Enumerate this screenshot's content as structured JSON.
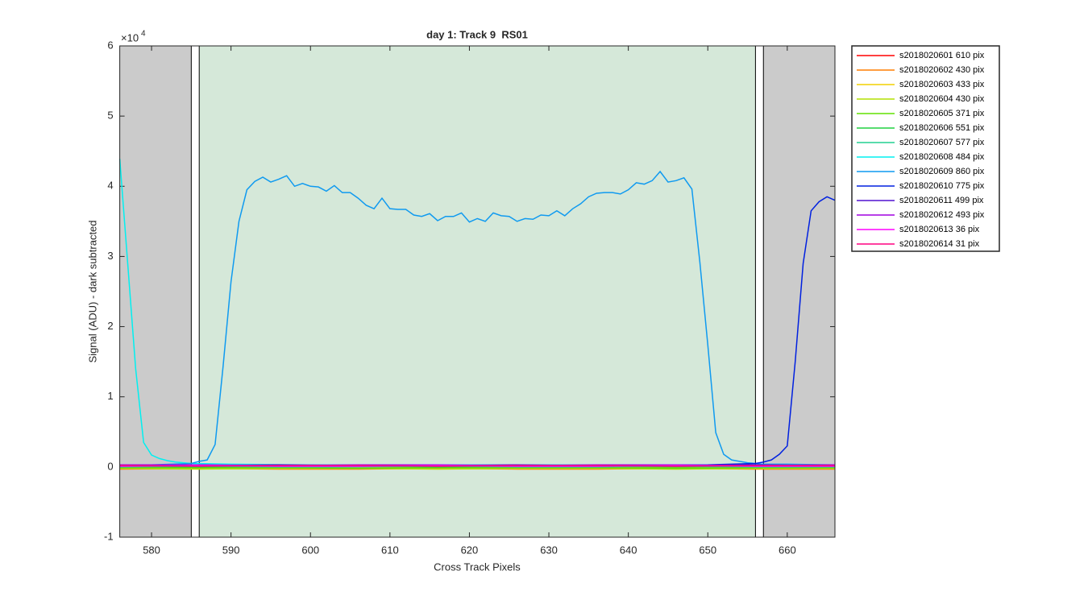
{
  "chart_data": {
    "type": "line",
    "title": "day 1: Track 9  RS01",
    "x_label": "Cross Track Pixels",
    "y_label": "Signal (ADU) - dark subtracted",
    "y_exponent": {
      "base": "×10",
      "power": "4"
    },
    "xlim": [
      576,
      666
    ],
    "xticks": [
      580,
      590,
      600,
      610,
      620,
      630,
      640,
      650,
      660
    ],
    "ylim": [
      -1,
      6
    ],
    "yticks": [
      -1,
      0,
      1,
      2,
      3,
      4,
      5,
      6
    ],
    "regions": [
      {
        "xlim": [
          576,
          585
        ],
        "color": "#cbcbcb"
      },
      {
        "xlim": [
          586,
          656
        ],
        "color": "#d5e8d9"
      },
      {
        "xlim": [
          657,
          666
        ],
        "color": "#cbcbcb"
      }
    ],
    "vlines": [
      585,
      586,
      656,
      657
    ],
    "legend": "outside-right",
    "series": [
      {
        "name": "s2018020601 610 pix",
        "color": "#ff0000",
        "x": [
          576,
          586,
          596,
          606,
          616,
          626,
          636,
          646,
          656,
          666
        ],
        "values": [
          -0.02,
          -0.02,
          -0.01,
          -0.02,
          -0.02,
          -0.01,
          -0.02,
          -0.02,
          -0.01,
          -0.02
        ]
      },
      {
        "name": "s2018020602 430 pix",
        "color": "#ff7f00",
        "x": [
          576,
          586,
          596,
          606,
          616,
          626,
          636,
          646,
          656,
          666
        ],
        "values": [
          -0.03,
          -0.02,
          -0.03,
          -0.03,
          -0.02,
          -0.03,
          -0.03,
          -0.02,
          -0.03,
          -0.03
        ]
      },
      {
        "name": "s2018020603 433 pix",
        "color": "#f2d000",
        "x": [
          576,
          586,
          596,
          606,
          616,
          626,
          636,
          646,
          656,
          666
        ],
        "values": [
          -0.01,
          -0.01,
          -0.02,
          -0.01,
          -0.01,
          -0.02,
          -0.01,
          -0.01,
          -0.02,
          -0.01
        ]
      },
      {
        "name": "s2018020604 430 pix",
        "color": "#b4e000",
        "x": [
          576,
          586,
          596,
          606,
          616,
          626,
          636,
          646,
          656,
          666
        ],
        "values": [
          -0.02,
          -0.03,
          -0.02,
          -0.02,
          -0.03,
          -0.02,
          -0.02,
          -0.03,
          -0.02,
          -0.02
        ]
      },
      {
        "name": "s2018020605 371 pix",
        "color": "#60e000",
        "x": [
          576,
          586,
          596,
          606,
          616,
          626,
          636,
          646,
          656,
          666
        ],
        "values": [
          -0.01,
          -0.01,
          -0.01,
          -0.02,
          -0.01,
          -0.01,
          -0.01,
          -0.02,
          -0.01,
          -0.01
        ]
      },
      {
        "name": "s2018020606 551 pix",
        "color": "#20d040",
        "x": [
          576,
          586,
          596,
          606,
          616,
          626,
          636,
          646,
          656,
          666
        ],
        "values": [
          0.01,
          0.0,
          0.01,
          0.01,
          0.0,
          0.01,
          0.01,
          0.0,
          0.01,
          0.01
        ]
      },
      {
        "name": "s2018020607 577 pix",
        "color": "#20d090",
        "x": [
          576,
          586,
          596,
          606,
          616,
          626,
          636,
          646,
          656,
          666
        ],
        "values": [
          0.0,
          0.01,
          0.0,
          0.0,
          0.01,
          0.0,
          0.0,
          0.01,
          0.0,
          0.0
        ]
      },
      {
        "name": "s2018020608 484 pix",
        "color": "#00f0f0",
        "x": [
          576,
          577,
          578,
          579,
          580,
          581,
          582,
          583,
          584,
          585,
          590,
          600,
          620,
          640,
          666
        ],
        "values": [
          4.39,
          2.9,
          1.4,
          0.35,
          0.17,
          0.12,
          0.09,
          0.07,
          0.06,
          0.05,
          0.04,
          0.03,
          0.03,
          0.03,
          0.03
        ]
      },
      {
        "name": "s2018020609 860 pix",
        "color": "#0f9af0",
        "x": [
          576,
          580,
          585,
          586,
          587,
          588,
          589,
          590,
          591,
          592,
          593,
          594,
          595,
          596,
          597,
          598,
          599,
          600,
          601,
          602,
          603,
          604,
          605,
          606,
          607,
          608,
          609,
          610,
          611,
          612,
          613,
          614,
          615,
          616,
          617,
          618,
          619,
          620,
          621,
          622,
          623,
          624,
          625,
          626,
          627,
          628,
          629,
          630,
          631,
          632,
          633,
          634,
          635,
          636,
          637,
          638,
          639,
          640,
          641,
          642,
          643,
          644,
          645,
          646,
          647,
          648,
          649,
          650,
          651,
          652,
          653,
          654,
          655,
          656,
          657,
          660,
          666
        ],
        "values": [
          0.03,
          0.03,
          0.05,
          0.08,
          0.1,
          0.32,
          1.43,
          2.64,
          3.5,
          3.95,
          4.07,
          4.13,
          4.06,
          4.1,
          4.15,
          4.0,
          4.04,
          4.0,
          3.99,
          3.93,
          4.01,
          3.91,
          3.91,
          3.83,
          3.73,
          3.68,
          3.83,
          3.68,
          3.67,
          3.67,
          3.59,
          3.57,
          3.61,
          3.51,
          3.57,
          3.57,
          3.62,
          3.49,
          3.54,
          3.5,
          3.62,
          3.58,
          3.57,
          3.5,
          3.54,
          3.53,
          3.59,
          3.58,
          3.65,
          3.58,
          3.68,
          3.75,
          3.85,
          3.9,
          3.91,
          3.91,
          3.89,
          3.95,
          4.05,
          4.03,
          4.08,
          4.21,
          4.06,
          4.08,
          4.12,
          3.96,
          2.92,
          1.74,
          0.49,
          0.18,
          0.1,
          0.08,
          0.06,
          0.05,
          0.04,
          0.04,
          0.03
        ]
      },
      {
        "name": "s2018020610 775 pix",
        "color": "#0020e0",
        "x": [
          576,
          590,
          610,
          630,
          650,
          656,
          657,
          658,
          659,
          660,
          661,
          662,
          663,
          664,
          665,
          666
        ],
        "values": [
          0.02,
          0.02,
          0.02,
          0.02,
          0.03,
          0.05,
          0.07,
          0.1,
          0.18,
          0.3,
          1.5,
          2.9,
          3.65,
          3.78,
          3.85,
          3.8
        ]
      },
      {
        "name": "s2018020611 499 pix",
        "color": "#5010d0",
        "x": [
          576,
          586,
          596,
          606,
          616,
          626,
          636,
          646,
          656,
          666
        ],
        "values": [
          0.02,
          0.02,
          0.03,
          0.02,
          0.02,
          0.03,
          0.02,
          0.02,
          0.03,
          0.02
        ]
      },
      {
        "name": "s2018020612 493 pix",
        "color": "#a000e0",
        "x": [
          576,
          586,
          596,
          606,
          616,
          626,
          636,
          646,
          656,
          666
        ],
        "values": [
          0.03,
          0.03,
          0.02,
          0.03,
          0.03,
          0.02,
          0.03,
          0.03,
          0.02,
          0.03
        ]
      },
      {
        "name": "s2018020613 36 pix",
        "color": "#ff00ff",
        "x": [
          576,
          586,
          596,
          606,
          616,
          626,
          636,
          646,
          656,
          666
        ],
        "values": [
          0.01,
          0.02,
          0.01,
          0.01,
          0.02,
          0.01,
          0.01,
          0.02,
          0.01,
          0.01
        ]
      },
      {
        "name": "s2018020614 31 pix",
        "color": "#ff0080",
        "x": [
          576,
          586,
          596,
          606,
          616,
          626,
          636,
          646,
          656,
          666
        ],
        "values": [
          0.02,
          0.01,
          0.02,
          0.02,
          0.01,
          0.02,
          0.02,
          0.01,
          0.02,
          0.02
        ]
      }
    ]
  }
}
